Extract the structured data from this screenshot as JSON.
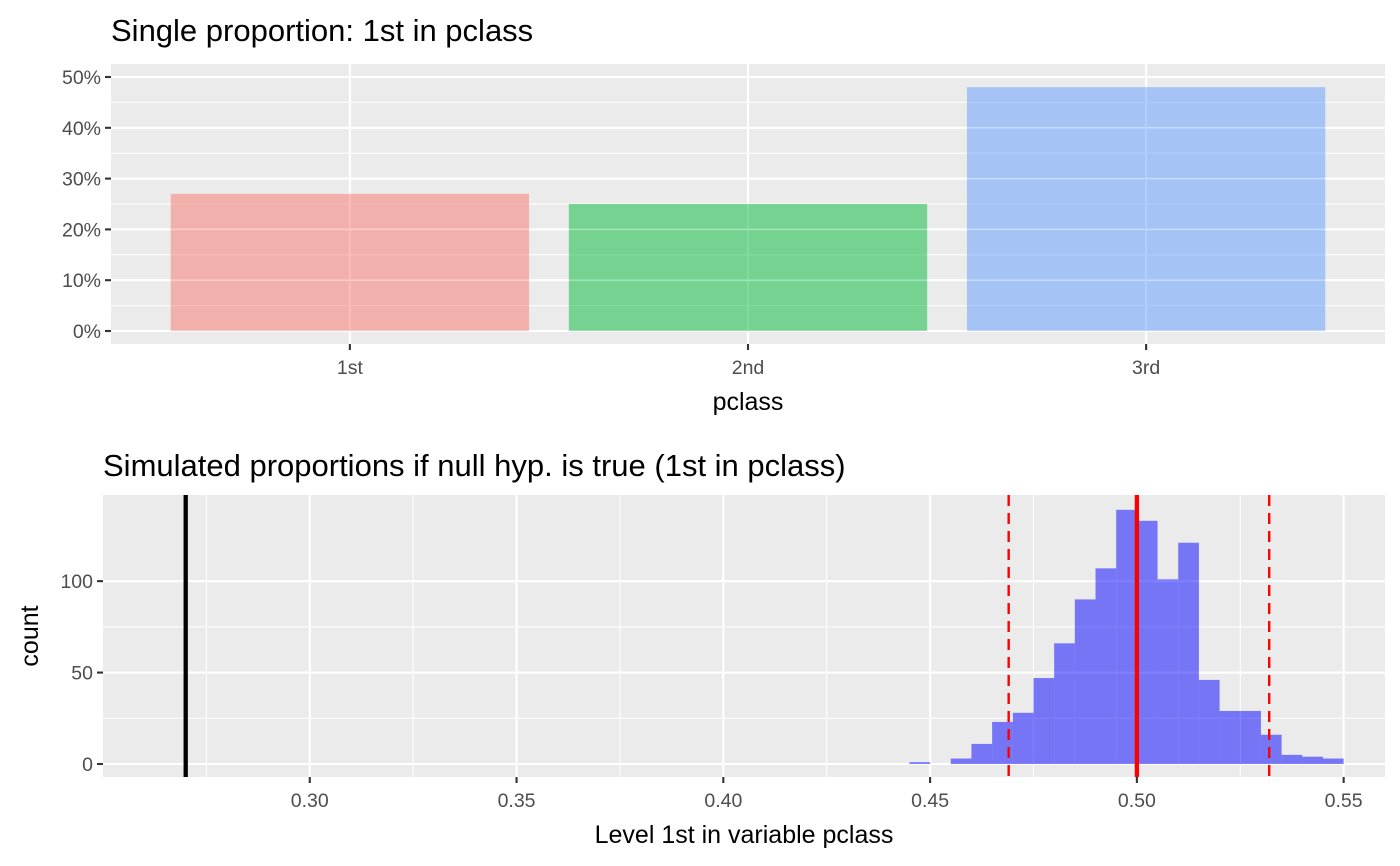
{
  "chart_data": [
    {
      "type": "bar",
      "title": "Single proportion: 1st in pclass",
      "xlabel": "pclass",
      "ylabel": "",
      "categories": [
        "1st",
        "2nd",
        "3rd"
      ],
      "values": [
        0.27,
        0.25,
        0.48
      ],
      "colors": [
        "#F8766D",
        "#00BA38",
        "#619CFF"
      ],
      "bar_alpha": 0.5,
      "ylim": [
        0,
        0.5
      ],
      "yticks": [
        0,
        0.1,
        0.2,
        0.3,
        0.4,
        0.5
      ],
      "ytick_labels": [
        "0%",
        "10%",
        "20%",
        "30%",
        "40%",
        "50%"
      ],
      "grid": true,
      "legend": "none"
    },
    {
      "type": "histogram",
      "title": "Simulated proportions if null hyp. is true (1st in pclass)",
      "xlabel": "Level 1st in variable pclass",
      "ylabel": "count",
      "xlim": [
        0.25,
        0.56
      ],
      "ylim": [
        0,
        140
      ],
      "xticks": [
        0.3,
        0.35,
        0.4,
        0.45,
        0.5,
        0.55
      ],
      "xtick_labels": [
        "0.30",
        "0.35",
        "0.40",
        "0.45",
        "0.50",
        "0.55"
      ],
      "yticks": [
        0,
        50,
        100
      ],
      "ytick_labels": [
        "0",
        "50",
        "100"
      ],
      "bin_width": 0.005,
      "bins": [
        {
          "x0": 0.445,
          "x1": 0.45,
          "count": 1
        },
        {
          "x0": 0.45,
          "x1": 0.455,
          "count": 0
        },
        {
          "x0": 0.455,
          "x1": 0.46,
          "count": 3
        },
        {
          "x0": 0.46,
          "x1": 0.465,
          "count": 11
        },
        {
          "x0": 0.465,
          "x1": 0.47,
          "count": 23
        },
        {
          "x0": 0.47,
          "x1": 0.475,
          "count": 28
        },
        {
          "x0": 0.475,
          "x1": 0.48,
          "count": 47
        },
        {
          "x0": 0.48,
          "x1": 0.485,
          "count": 66
        },
        {
          "x0": 0.485,
          "x1": 0.49,
          "count": 90
        },
        {
          "x0": 0.49,
          "x1": 0.495,
          "count": 107
        },
        {
          "x0": 0.495,
          "x1": 0.5,
          "count": 139
        },
        {
          "x0": 0.5,
          "x1": 0.505,
          "count": 133
        },
        {
          "x0": 0.505,
          "x1": 0.51,
          "count": 101
        },
        {
          "x0": 0.51,
          "x1": 0.515,
          "count": 121
        },
        {
          "x0": 0.515,
          "x1": 0.52,
          "count": 46
        },
        {
          "x0": 0.52,
          "x1": 0.525,
          "count": 29
        },
        {
          "x0": 0.525,
          "x1": 0.53,
          "count": 29
        },
        {
          "x0": 0.53,
          "x1": 0.535,
          "count": 16
        },
        {
          "x0": 0.535,
          "x1": 0.54,
          "count": 5
        },
        {
          "x0": 0.54,
          "x1": 0.545,
          "count": 4
        },
        {
          "x0": 0.545,
          "x1": 0.55,
          "count": 3
        }
      ],
      "fill_color": "#0000FF",
      "fill_alpha": 0.5,
      "vlines": [
        {
          "x": 0.27,
          "color": "#000000",
          "style": "solid",
          "role": "observed proportion"
        },
        {
          "x": 0.5,
          "color": "#FF0000",
          "style": "solid",
          "role": "null hypothesis value"
        },
        {
          "x": 0.469,
          "color": "#FF0000",
          "style": "dashed",
          "role": "lower critical value"
        },
        {
          "x": 0.532,
          "color": "#FF0000",
          "style": "dashed",
          "role": "upper critical value"
        }
      ],
      "grid": true,
      "legend": "none"
    }
  ]
}
